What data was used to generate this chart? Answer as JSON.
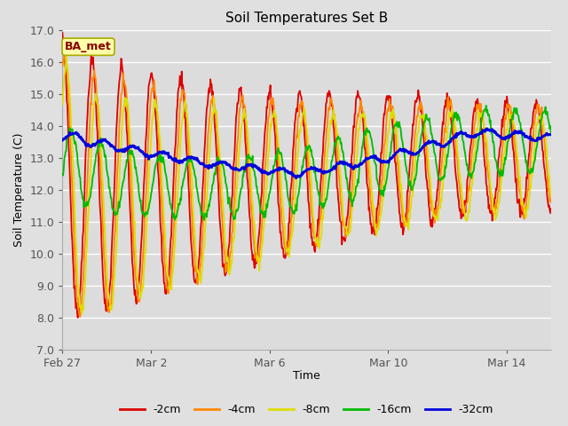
{
  "title": "Soil Temperatures Set B",
  "xlabel": "Time",
  "ylabel": "Soil Temperature (C)",
  "ylim": [
    7.0,
    17.0
  ],
  "yticks": [
    7.0,
    8.0,
    9.0,
    10.0,
    11.0,
    12.0,
    13.0,
    14.0,
    15.0,
    16.0,
    17.0
  ],
  "xtick_labels": [
    "Feb 27",
    "Mar 2",
    "Mar 6",
    "Mar 10",
    "Mar 14"
  ],
  "xtick_positions": [
    0,
    3,
    7,
    11,
    15
  ],
  "xlim": [
    0,
    16.5
  ],
  "legend_labels": [
    "-2cm",
    "-4cm",
    "-8cm",
    "-16cm",
    "-32cm"
  ],
  "legend_colors": [
    "#dd0000",
    "#ff8800",
    "#dddd00",
    "#00bb00",
    "#0000dd"
  ],
  "line_widths": [
    1.3,
    1.3,
    1.3,
    1.3,
    2.0
  ],
  "figure_bg": "#e0e0e0",
  "plot_bg": "#dcdcdc",
  "grid_color": "#ffffff",
  "annotation_text": "BA_met",
  "annotation_bg": "#ffffaa",
  "annotation_border": "#aaaa00",
  "annotation_text_color": "#880000"
}
